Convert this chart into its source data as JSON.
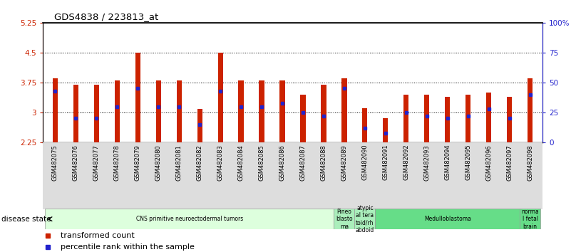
{
  "title": "GDS4838 / 223813_at",
  "samples": [
    "GSM482075",
    "GSM482076",
    "GSM482077",
    "GSM482078",
    "GSM482079",
    "GSM482080",
    "GSM482081",
    "GSM482082",
    "GSM482083",
    "GSM482084",
    "GSM482085",
    "GSM482086",
    "GSM482087",
    "GSM482088",
    "GSM482089",
    "GSM482090",
    "GSM482091",
    "GSM482092",
    "GSM482093",
    "GSM482094",
    "GSM482095",
    "GSM482096",
    "GSM482097",
    "GSM482098"
  ],
  "transformed_count": [
    3.85,
    3.7,
    3.7,
    3.8,
    4.5,
    3.8,
    3.8,
    3.08,
    4.5,
    3.8,
    3.8,
    3.8,
    3.45,
    3.7,
    3.85,
    3.1,
    2.85,
    3.45,
    3.45,
    3.4,
    3.45,
    3.5,
    3.4,
    3.85
  ],
  "percentile_rank": [
    43,
    20,
    20,
    30,
    45,
    30,
    30,
    15,
    43,
    30,
    30,
    33,
    25,
    22,
    45,
    12,
    8,
    25,
    22,
    20,
    22,
    28,
    20,
    40
  ],
  "ylim_left": [
    2.25,
    5.25
  ],
  "ylim_right": [
    0,
    100
  ],
  "yticks_left": [
    2.25,
    3.0,
    3.75,
    4.5,
    5.25
  ],
  "yticks_right": [
    0,
    25,
    50,
    75,
    100
  ],
  "ytick_labels_left": [
    "2.25",
    "3",
    "3.75",
    "4.5",
    "5.25"
  ],
  "ytick_labels_right": [
    "0",
    "25",
    "50",
    "75",
    "100%"
  ],
  "bar_color": "#CC2200",
  "percentile_color": "#2222CC",
  "disease_groups": [
    {
      "label": "CNS primitive neuroectodermal tumors",
      "start": 0,
      "end": 14,
      "color": "#DDFFDD"
    },
    {
      "label": "Pineo\nblasto\nma",
      "start": 14,
      "end": 15,
      "color": "#AAEEBB"
    },
    {
      "label": "atypic\nal tera\ntoid/rh\nabdoid",
      "start": 15,
      "end": 16,
      "color": "#AAEEBB"
    },
    {
      "label": "Medulloblastoma",
      "start": 16,
      "end": 23,
      "color": "#66DD88"
    },
    {
      "label": "norma\nl fetal\nbrain",
      "start": 23,
      "end": 24,
      "color": "#66DD88"
    }
  ],
  "legend": [
    {
      "label": "transformed count",
      "color": "#CC2200"
    },
    {
      "label": "percentile rank within the sample",
      "color": "#2222CC"
    }
  ],
  "disease_state_label": "disease state",
  "background_color": "#FFFFFF",
  "bar_width": 0.25,
  "grid_yticks": [
    3.0,
    3.75,
    4.5
  ]
}
